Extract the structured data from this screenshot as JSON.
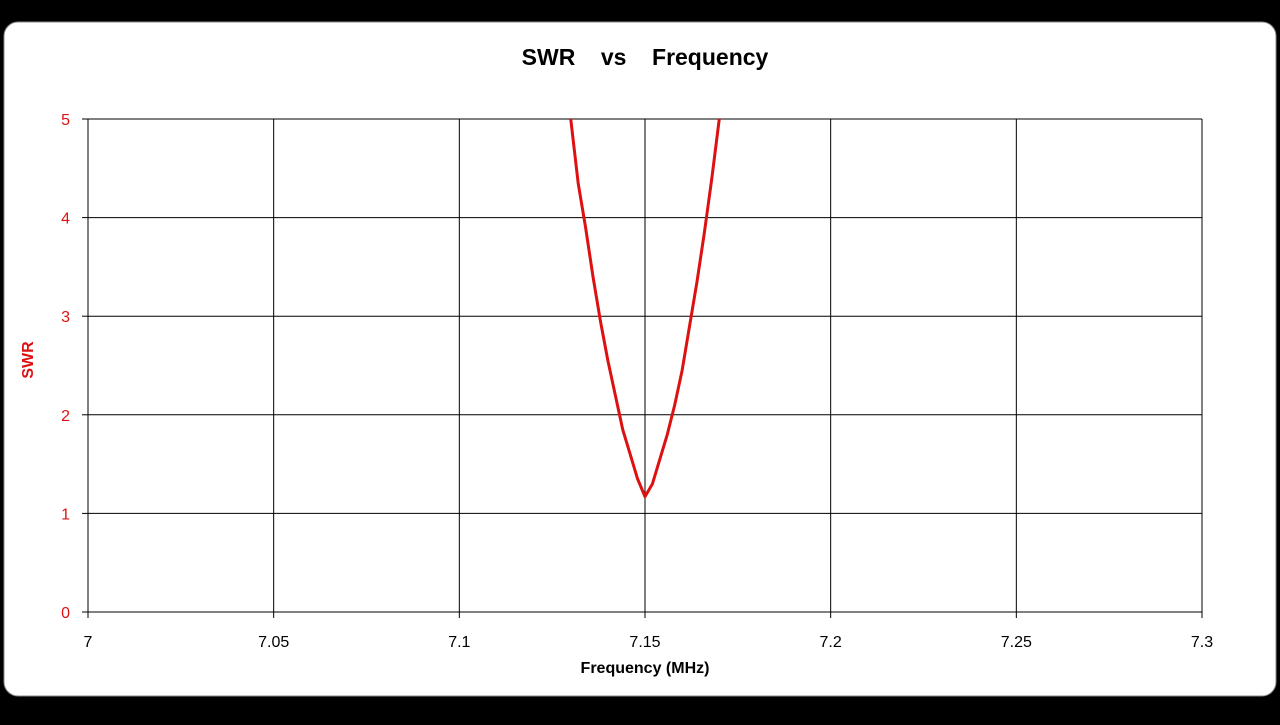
{
  "chart_data": {
    "type": "line",
    "title": "SWR    vs    Frequency",
    "xlabel": "Frequency (MHz)",
    "ylabel": "SWR",
    "xlim": [
      7,
      7.3
    ],
    "ylim": [
      0,
      5
    ],
    "x_ticks": [
      "7",
      "7.05",
      "7.1",
      "7.15",
      "7.2",
      "7.25",
      "7.3"
    ],
    "y_ticks": [
      "0",
      "1",
      "2",
      "3",
      "4",
      "5"
    ],
    "grid": true,
    "legend": "none",
    "series": [
      {
        "x": [
          7.13,
          7.132,
          7.134,
          7.136,
          7.138,
          7.14,
          7.142,
          7.144,
          7.146,
          7.148,
          7.15,
          7.152,
          7.154,
          7.156,
          7.158,
          7.16,
          7.162,
          7.164,
          7.166,
          7.168,
          7.17
        ],
        "y": [
          5.0,
          4.35,
          3.9,
          3.4,
          2.95,
          2.55,
          2.2,
          1.85,
          1.6,
          1.35,
          1.17,
          1.3,
          1.55,
          1.8,
          2.1,
          2.45,
          2.9,
          3.35,
          3.85,
          4.4,
          5.0
        ]
      }
    ],
    "colors": {
      "line": "#dd1111",
      "y_axis_text": "#dd1111",
      "grid": "#000000",
      "panel": "#ffffff",
      "background": "#000000"
    }
  }
}
